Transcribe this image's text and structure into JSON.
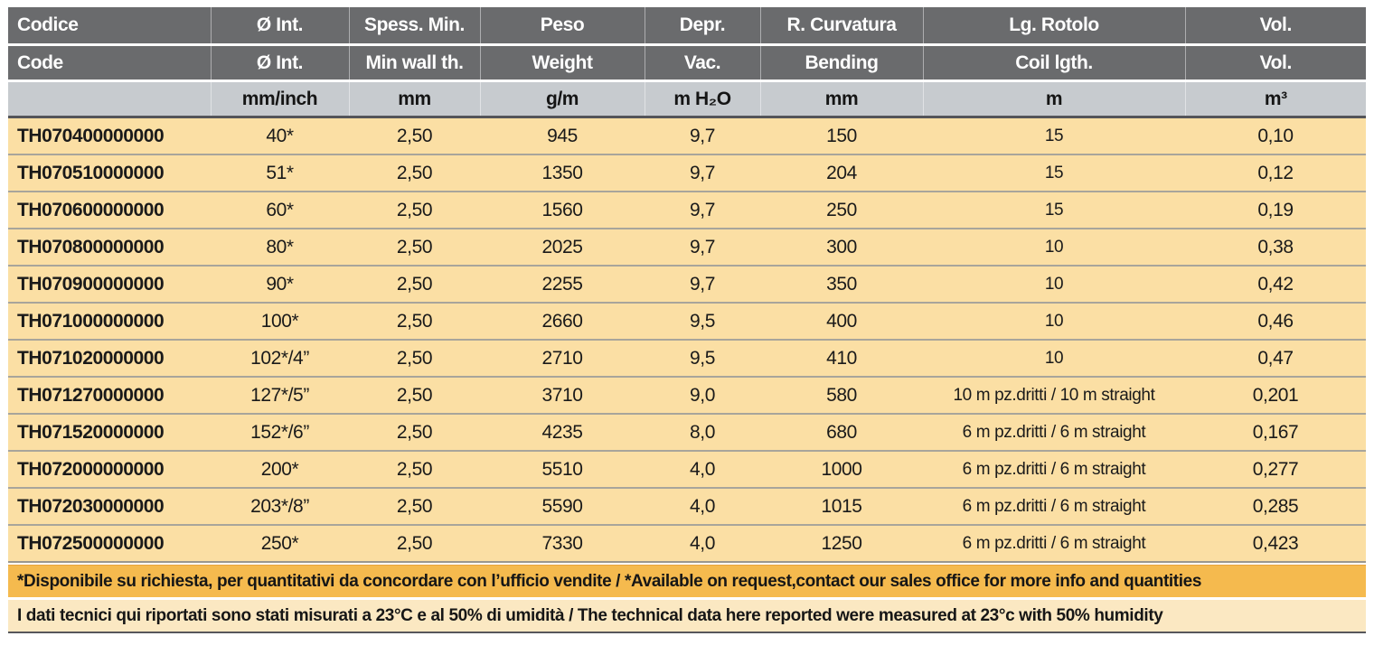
{
  "table": {
    "header_row_italian": [
      "Codice",
      "Ø Int.",
      "Spess. Min.",
      "Peso",
      "Depr.",
      "R. Curvatura",
      "Lg. Rotolo",
      "Vol."
    ],
    "header_row_english": [
      "Code",
      "Ø Int.",
      "Min wall th.",
      "Weight",
      "Vac.",
      "Bending",
      "Coil lgth.",
      "Vol."
    ],
    "units_row": [
      "",
      "mm/inch",
      "mm",
      "g/m",
      "m H₂O",
      "mm",
      "m",
      "m³"
    ],
    "columns": [
      "code",
      "internal_diameter",
      "min_wall_thickness",
      "weight",
      "vacuum",
      "bending_radius",
      "coil_length",
      "volume"
    ],
    "rows": [
      [
        "TH070400000000",
        "40*",
        "2,50",
        "945",
        "9,7",
        "150",
        "15",
        "0,10"
      ],
      [
        "TH070510000000",
        "51*",
        "2,50",
        "1350",
        "9,7",
        "204",
        "15",
        "0,12"
      ],
      [
        "TH070600000000",
        "60*",
        "2,50",
        "1560",
        "9,7",
        "250",
        "15",
        "0,19"
      ],
      [
        "TH070800000000",
        "80*",
        "2,50",
        "2025",
        "9,7",
        "300",
        "10",
        "0,38"
      ],
      [
        "TH070900000000",
        "90*",
        "2,50",
        "2255",
        "9,7",
        "350",
        "10",
        "0,42"
      ],
      [
        "TH071000000000",
        "100*",
        "2,50",
        "2660",
        "9,5",
        "400",
        "10",
        "0,46"
      ],
      [
        "TH071020000000",
        "102*/4”",
        "2,50",
        "2710",
        "9,5",
        "410",
        "10",
        "0,47"
      ],
      [
        "TH071270000000",
        "127*/5”",
        "2,50",
        "3710",
        "9,0",
        "580",
        "10 m pz.dritti / 10 m straight",
        "0,201"
      ],
      [
        "TH071520000000",
        "152*/6”",
        "2,50",
        "4235",
        "8,0",
        "680",
        "6 m pz.dritti / 6 m straight",
        "0,167"
      ],
      [
        "TH072000000000",
        "200*",
        "2,50",
        "5510",
        "4,0",
        "1000",
        "6 m pz.dritti / 6 m straight",
        "0,277"
      ],
      [
        "TH072030000000",
        "203*/8”",
        "2,50",
        "5590",
        "4,0",
        "1015",
        "6 m pz.dritti / 6 m straight",
        "0,285"
      ],
      [
        "TH072500000000",
        "250*",
        "2,50",
        "7330",
        "4,0",
        "1250",
        "6 m pz.dritti / 6 m straight",
        "0,423"
      ]
    ],
    "notes": {
      "availability": "*Disponibile su richiesta, per quantitativi da concordare con l’ufficio vendite / *Available on request,contact our sales office for more info and quantities",
      "measurement_conditions": "I dati tecnici qui riportati sono stati misurati a 23°C e al 50% di umidità / The technical data here reported were measured at 23°c with 50% humidity"
    },
    "colors": {
      "header_bg": "#6a6b6d",
      "header_text": "#ffffff",
      "units_bg": "#c7cbcf",
      "row_bg": "#fbdfa4",
      "note1_bg": "#f5ba4e",
      "note2_bg": "#fbe8c2",
      "dark_border": "#54555a"
    }
  }
}
